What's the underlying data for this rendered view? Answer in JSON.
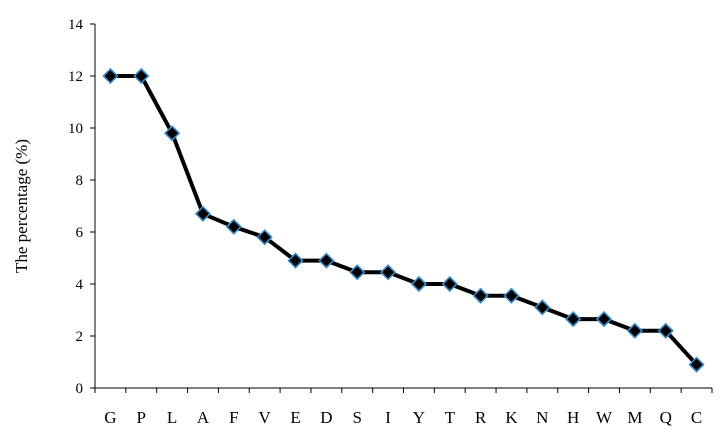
{
  "chart_data": {
    "type": "line",
    "title": "",
    "xlabel": "",
    "ylabel": "The percentage (%)",
    "ylim": [
      0,
      14
    ],
    "yticks": [
      0,
      2,
      4,
      6,
      8,
      10,
      12,
      14
    ],
    "grid": false,
    "legend": "none",
    "categories": [
      "G",
      "P",
      "L",
      "A",
      "F",
      "V",
      "E",
      "D",
      "S",
      "I",
      "Y",
      "T",
      "R",
      "K",
      "N",
      "H",
      "W",
      "M",
      "Q",
      "C"
    ],
    "series": [
      {
        "values": [
          12.0,
          12.0,
          9.8,
          6.7,
          6.2,
          5.8,
          4.9,
          4.9,
          4.45,
          4.45,
          4.0,
          4.0,
          3.55,
          3.55,
          3.1,
          2.65,
          2.65,
          2.2,
          2.2,
          0.9
        ],
        "line_color": "#000000",
        "marker": "diamond",
        "marker_fill": "#000000",
        "marker_edge": "#3a8cc8"
      }
    ]
  }
}
